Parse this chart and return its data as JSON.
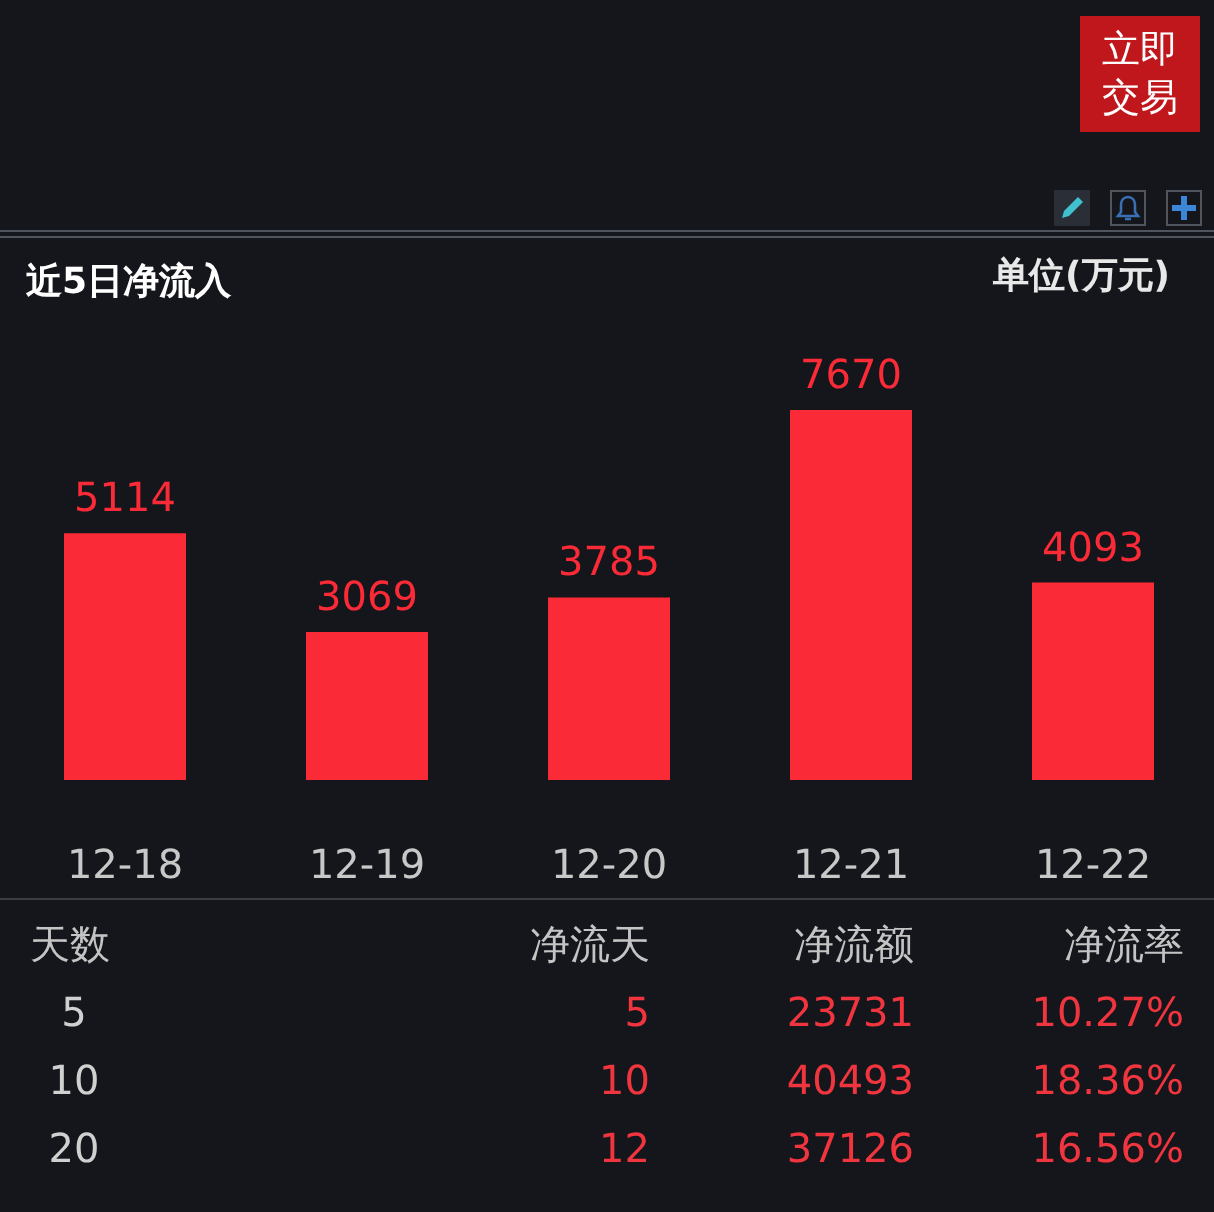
{
  "chart_data": [
    {
      "type": "bar",
      "title": "近5日净流入",
      "annotations": [
        "单位(万元)",
        "立即交易"
      ],
      "categories": [
        "12-18",
        "12-19",
        "12-20",
        "12-21",
        "12-22"
      ],
      "values": [
        5114,
        3069,
        3785,
        7670,
        4093
      ],
      "color": "#fa2a36",
      "data_labels": true
    },
    {
      "type": "other",
      "xlabel": "天数",
      "categories": [
        "5",
        "10",
        "20"
      ],
      "series": [
        {
          "name": "净流天",
          "values": [
            5,
            10,
            12
          ],
          "value_labels": [
            "5",
            "10",
            "12"
          ]
        },
        {
          "name": "净流额",
          "values": [
            23731,
            40493,
            37126
          ],
          "value_labels": [
            "23731",
            "40493",
            "37126"
          ]
        },
        {
          "name": "净流率",
          "values": [
            10.27,
            18.36,
            16.56
          ],
          "value_labels": [
            "10.27%",
            "18.36%",
            "16.56%"
          ]
        }
      ]
    }
  ]
}
